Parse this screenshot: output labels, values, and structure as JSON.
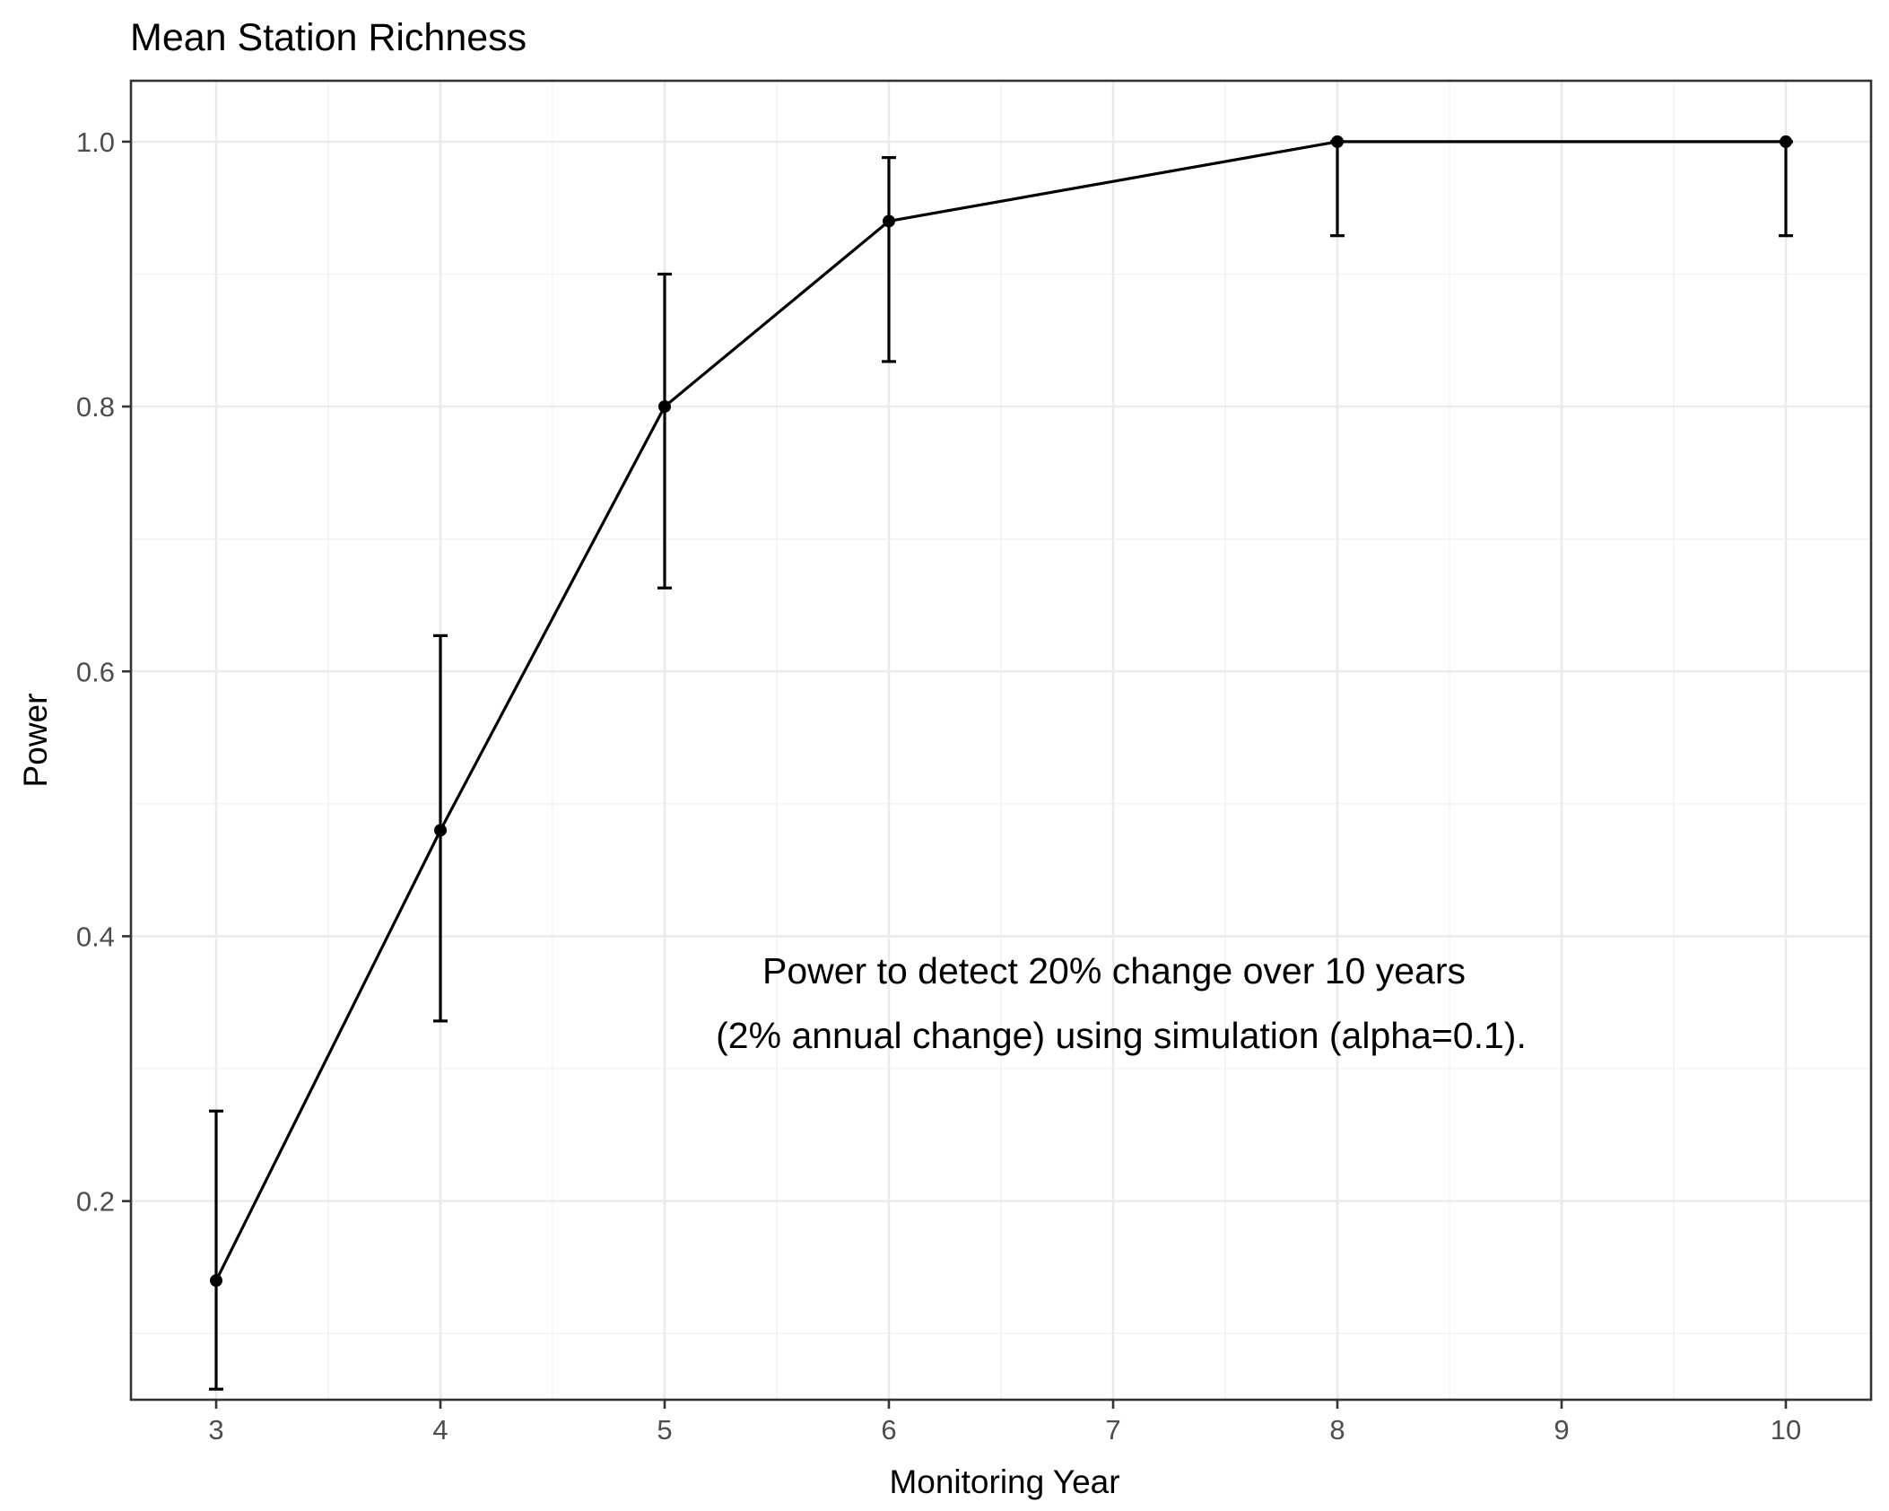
{
  "chart_data": {
    "type": "line",
    "title": "Mean Station Richness",
    "xlabel": "Monitoring Year",
    "ylabel": "Power",
    "xlim": [
      2.62,
      10.38
    ],
    "ylim": [
      0.05,
      1.046
    ],
    "x_ticks": [
      3,
      4,
      5,
      6,
      7,
      8,
      9,
      10
    ],
    "y_ticks": [
      0.2,
      0.4,
      0.6,
      0.8,
      1.0
    ],
    "x_tick_labels": [
      "3",
      "4",
      "5",
      "6",
      "7",
      "8",
      "9",
      "10"
    ],
    "y_tick_labels": [
      "0.2",
      "0.4",
      "0.6",
      "0.8",
      "1.0"
    ],
    "grid": true,
    "series": [
      {
        "x": [
          3,
          4,
          5,
          6,
          8,
          10
        ],
        "values": [
          0.14,
          0.48,
          0.8,
          0.94,
          1.0,
          1.0
        ],
        "error_lower": [
          0.058,
          0.336,
          0.663,
          0.834,
          0.929,
          0.929
        ],
        "error_upper": [
          0.268,
          0.627,
          0.9,
          0.988,
          1.0,
          1.0
        ]
      }
    ],
    "annotations": [
      "Power to detect 20% change over 10 years",
      "(2% annual change) using simulation (alpha=0.1)."
    ],
    "colors": {
      "line": "#000000",
      "panel_border": "#333333",
      "grid": "#ebebeb"
    }
  }
}
